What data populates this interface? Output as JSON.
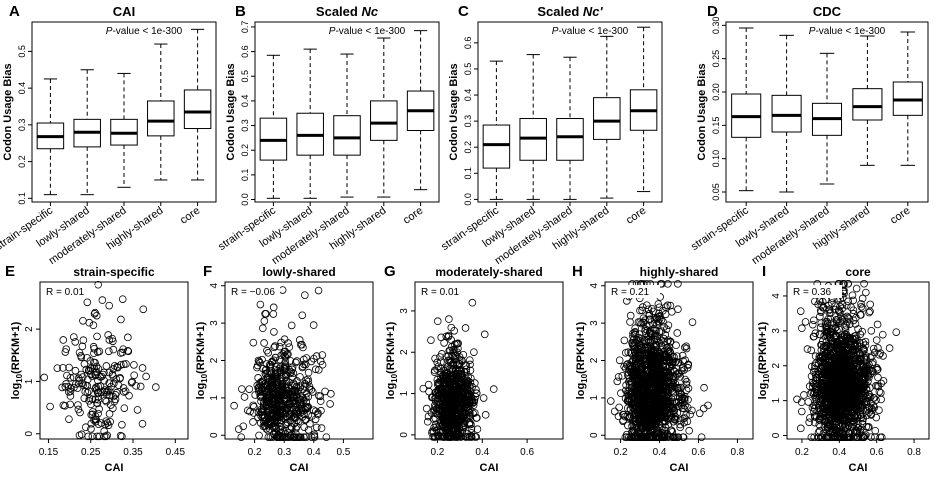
{
  "colors": {
    "ink": "#000000",
    "background": "#ffffff"
  },
  "chart_data": [
    {
      "panel": "A",
      "type": "boxplot",
      "title": "CAI",
      "title_italic": "",
      "ylabel": "Codon Usage Bias",
      "annotation": {
        "italic": "P",
        "text": "-value < 1e-300"
      },
      "ylim": [
        0.09,
        0.58
      ],
      "yticks": [
        0.1,
        0.2,
        0.3,
        0.4,
        0.5
      ],
      "ytick_labels": [
        "0.1",
        "0.2",
        "0.3",
        "0.4",
        "0.5"
      ],
      "categories": [
        "strain-specific",
        "lowly-shared",
        "moderately-shared",
        "highly-shared",
        "core"
      ],
      "boxes": [
        {
          "min": 0.11,
          "q1": 0.235,
          "median": 0.268,
          "q3": 0.305,
          "max": 0.425
        },
        {
          "min": 0.11,
          "q1": 0.24,
          "median": 0.28,
          "q3": 0.315,
          "max": 0.45
        },
        {
          "min": 0.13,
          "q1": 0.245,
          "median": 0.277,
          "q3": 0.315,
          "max": 0.44
        },
        {
          "min": 0.15,
          "q1": 0.27,
          "median": 0.31,
          "q3": 0.365,
          "max": 0.52
        },
        {
          "min": 0.15,
          "q1": 0.29,
          "median": 0.335,
          "q3": 0.395,
          "max": 0.56
        }
      ]
    },
    {
      "panel": "B",
      "type": "boxplot",
      "title": "Scaled ",
      "title_italic": "Nc",
      "ylabel": "Codon Usage Bias",
      "annotation": {
        "italic": "P",
        "text": "-value < 1e-300"
      },
      "ylim": [
        -0.01,
        0.72
      ],
      "yticks": [
        0.0,
        0.1,
        0.2,
        0.3,
        0.4,
        0.5,
        0.6,
        0.7
      ],
      "ytick_labels": [
        "0.0",
        "0.1",
        "0.2",
        "0.3",
        "0.4",
        "0.5",
        "0.6",
        "0.7"
      ],
      "categories": [
        "strain-specific",
        "lowly-shared",
        "moderately-shared",
        "highly-shared",
        "core"
      ],
      "boxes": [
        {
          "min": 0.005,
          "q1": 0.16,
          "median": 0.24,
          "q3": 0.33,
          "max": 0.585
        },
        {
          "min": 0.005,
          "q1": 0.18,
          "median": 0.26,
          "q3": 0.35,
          "max": 0.61
        },
        {
          "min": 0.01,
          "q1": 0.18,
          "median": 0.25,
          "q3": 0.34,
          "max": 0.59
        },
        {
          "min": 0.01,
          "q1": 0.24,
          "median": 0.31,
          "q3": 0.4,
          "max": 0.655
        },
        {
          "min": 0.04,
          "q1": 0.28,
          "median": 0.36,
          "q3": 0.44,
          "max": 0.685
        }
      ]
    },
    {
      "panel": "C",
      "type": "boxplot",
      "title": "Scaled ",
      "title_italic": "Nc'",
      "ylabel": "Codon Usage Bias",
      "annotation": {
        "italic": "P",
        "text": "-value < 1e-300"
      },
      "ylim": [
        -0.01,
        0.68
      ],
      "yticks": [
        0.0,
        0.1,
        0.2,
        0.3,
        0.4,
        0.5,
        0.6
      ],
      "ytick_labels": [
        "0.0",
        "0.1",
        "0.2",
        "0.3",
        "0.4",
        "0.5",
        "0.6"
      ],
      "categories": [
        "strain-specific",
        "lowly-shared",
        "moderately-shared",
        "highly-shared",
        "core"
      ],
      "boxes": [
        {
          "min": 0.0,
          "q1": 0.12,
          "median": 0.21,
          "q3": 0.285,
          "max": 0.53
        },
        {
          "min": 0.0,
          "q1": 0.15,
          "median": 0.235,
          "q3": 0.31,
          "max": 0.555
        },
        {
          "min": 0.0,
          "q1": 0.15,
          "median": 0.24,
          "q3": 0.31,
          "max": 0.545
        },
        {
          "min": 0.005,
          "q1": 0.23,
          "median": 0.3,
          "q3": 0.39,
          "max": 0.625
        },
        {
          "min": 0.03,
          "q1": 0.265,
          "median": 0.34,
          "q3": 0.42,
          "max": 0.66
        }
      ]
    },
    {
      "panel": "D",
      "type": "boxplot",
      "title": "CDC",
      "title_italic": "",
      "ylabel": "Codon Usage Bias",
      "annotation": {
        "italic": "P",
        "text": "-value < 1e-300"
      },
      "ylim": [
        0.035,
        0.305
      ],
      "yticks": [
        0.05,
        0.1,
        0.15,
        0.2,
        0.25,
        0.3
      ],
      "ytick_labels": [
        "0.05",
        "0.10",
        "0.15",
        "0.20",
        "0.25",
        "0.30"
      ],
      "categories": [
        "strain-specific",
        "lowly-shared",
        "moderately-shared",
        "highly-shared",
        "core"
      ],
      "boxes": [
        {
          "min": 0.052,
          "q1": 0.132,
          "median": 0.163,
          "q3": 0.197,
          "max": 0.296
        },
        {
          "min": 0.05,
          "q1": 0.14,
          "median": 0.165,
          "q3": 0.195,
          "max": 0.285
        },
        {
          "min": 0.062,
          "q1": 0.135,
          "median": 0.16,
          "q3": 0.183,
          "max": 0.258
        },
        {
          "min": 0.09,
          "q1": 0.158,
          "median": 0.178,
          "q3": 0.205,
          "max": 0.284
        },
        {
          "min": 0.09,
          "q1": 0.165,
          "median": 0.188,
          "q3": 0.215,
          "max": 0.29
        }
      ]
    },
    {
      "panel": "E",
      "type": "scatter",
      "title": "strain-specific",
      "xlabel": "CAI",
      "ylabel_prefix": "log",
      "ylabel_sub": "10",
      "ylabel_suffix": "(RPKM+1)",
      "r_label": "R = 0.01",
      "xlim": [
        0.13,
        0.48
      ],
      "ylim": [
        -0.1,
        2.9
      ],
      "xticks": [
        0.15,
        0.25,
        0.35,
        0.45
      ],
      "xtick_labels": [
        "0.15",
        "0.25",
        "0.35",
        "0.45"
      ],
      "yticks": [
        0,
        1,
        2
      ],
      "ytick_labels": [
        "0",
        "1",
        "2"
      ],
      "cloud": {
        "count": 210,
        "x_center": 0.245,
        "x_spread": 0.06,
        "y_center": 0.95,
        "y_spread": 0.55
      }
    },
    {
      "panel": "F",
      "type": "scatter",
      "title": "lowly-shared",
      "xlabel": "CAI",
      "ylabel_prefix": "log",
      "ylabel_sub": "10",
      "ylabel_suffix": "(RPKM+1)",
      "r_label": "R = −0.06",
      "xlim": [
        0.1,
        0.6
      ],
      "ylim": [
        -0.1,
        4.1
      ],
      "xticks": [
        0.2,
        0.3,
        0.4,
        0.5
      ],
      "xtick_labels": [
        "0.2",
        "0.3",
        "0.4",
        "0.5"
      ],
      "yticks": [
        0,
        1,
        2,
        3,
        4
      ],
      "ytick_labels": [
        "0",
        "1",
        "2",
        "3",
        "4"
      ],
      "cloud": {
        "count": 560,
        "x_center": 0.27,
        "x_spread": 0.065,
        "y_center": 0.85,
        "y_spread": 0.65
      }
    },
    {
      "panel": "G",
      "type": "scatter",
      "title": "moderately-shared",
      "xlabel": "CAI",
      "ylabel_prefix": "log",
      "ylabel_sub": "10",
      "ylabel_suffix": "(RPKM+1)",
      "r_label": "R = 0.01",
      "xlim": [
        0.1,
        0.76
      ],
      "ylim": [
        -0.1,
        3.7
      ],
      "xticks": [
        0.2,
        0.4,
        0.6
      ],
      "xtick_labels": [
        "0.2",
        "0.4",
        "0.6"
      ],
      "yticks": [
        0,
        1,
        2,
        3
      ],
      "ytick_labels": [
        "0",
        "1",
        "2",
        "3"
      ],
      "cloud": {
        "count": 700,
        "x_center": 0.25,
        "x_spread": 0.06,
        "y_center": 0.75,
        "y_spread": 0.55
      }
    },
    {
      "panel": "H",
      "type": "scatter",
      "title": "highly-shared",
      "xlabel": "CAI",
      "ylabel_prefix": "log",
      "ylabel_sub": "10",
      "ylabel_suffix": "(RPKM+1)",
      "r_label": "R = 0.21",
      "xlim": [
        0.12,
        0.88
      ],
      "ylim": [
        -0.1,
        4.1
      ],
      "xticks": [
        0.2,
        0.4,
        0.6,
        0.8
      ],
      "xtick_labels": [
        "0.2",
        "0.4",
        "0.6",
        "0.8"
      ],
      "yticks": [
        0,
        1,
        2,
        3,
        4
      ],
      "ytick_labels": [
        "0",
        "1",
        "2",
        "3",
        "4"
      ],
      "cloud": {
        "count": 1300,
        "x_center": 0.33,
        "x_spread": 0.09,
        "y_center": 1.1,
        "y_spread": 0.8
      }
    },
    {
      "panel": "I",
      "type": "scatter",
      "title": "core",
      "xlabel": "CAI",
      "ylabel_prefix": "log",
      "ylabel_sub": "10",
      "ylabel_suffix": "(RPKM+1)",
      "r_label": "R = 0.36",
      "xlim": [
        0.12,
        0.88
      ],
      "ylim": [
        -0.1,
        4.4
      ],
      "xticks": [
        0.2,
        0.4,
        0.6,
        0.8
      ],
      "xtick_labels": [
        "0.2",
        "0.4",
        "0.6",
        "0.8"
      ],
      "yticks": [
        0,
        1,
        2,
        3,
        4
      ],
      "ytick_labels": [
        "0",
        "1",
        "2",
        "3",
        "4"
      ],
      "cloud": {
        "count": 1500,
        "x_center": 0.38,
        "x_spread": 0.1,
        "y_center": 1.35,
        "y_spread": 0.8
      }
    }
  ]
}
